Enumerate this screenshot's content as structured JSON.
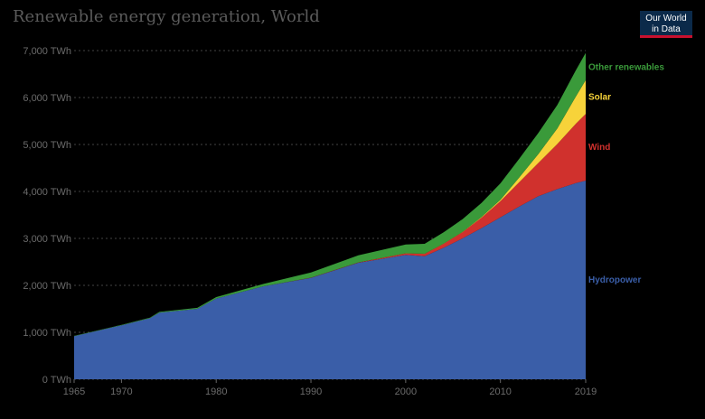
{
  "header": {
    "title": "Renewable energy generation, World",
    "logo_line1": "Our World",
    "logo_line2": "in Data"
  },
  "colors": {
    "hydropower": "#3a5ea8",
    "wind": "#d0312d",
    "solar": "#f7d33a",
    "other": "#3a9a3a"
  },
  "chart_data": {
    "type": "area",
    "title": "Renewable energy generation, World",
    "x": [
      1965,
      1970,
      1973,
      1974,
      1978,
      1980,
      1985,
      1990,
      1995,
      2000,
      2002,
      2004,
      2006,
      2008,
      2010,
      2012,
      2014,
      2016,
      2018,
      2019
    ],
    "ylim": [
      0,
      7000
    ],
    "y_ticks": [
      "0 TWh",
      "1,000 TWh",
      "2,000 TWh",
      "3,000 TWh",
      "4,000 TWh",
      "5,000 TWh",
      "6,000 TWh",
      "7,000 TWh"
    ],
    "x_ticks": [
      "1965",
      "1970",
      "1980",
      "1990",
      "2000",
      "2010",
      "2019"
    ],
    "stacked": true,
    "series": [
      {
        "name": "Hydropower",
        "values": [
          920,
          1150,
          1300,
          1420,
          1500,
          1720,
          1980,
          2160,
          2480,
          2650,
          2620,
          2800,
          3000,
          3220,
          3450,
          3680,
          3900,
          4050,
          4180,
          4230
        ]
      },
      {
        "name": "Wind",
        "values": [
          0,
          0,
          0,
          0,
          0,
          0,
          0,
          4,
          8,
          31,
          52,
          85,
          133,
          221,
          342,
          520,
          706,
          960,
          1270,
          1420
        ]
      },
      {
        "name": "Solar",
        "values": [
          0,
          0,
          0,
          0,
          0,
          0,
          0,
          0,
          0,
          1,
          2,
          3,
          6,
          12,
          32,
          100,
          190,
          330,
          585,
          720
        ]
      },
      {
        "name": "Other renewables",
        "values": [
          5,
          10,
          12,
          15,
          22,
          30,
          50,
          110,
          150,
          190,
          210,
          240,
          270,
          300,
          350,
          400,
          450,
          500,
          560,
          580
        ]
      }
    ]
  }
}
